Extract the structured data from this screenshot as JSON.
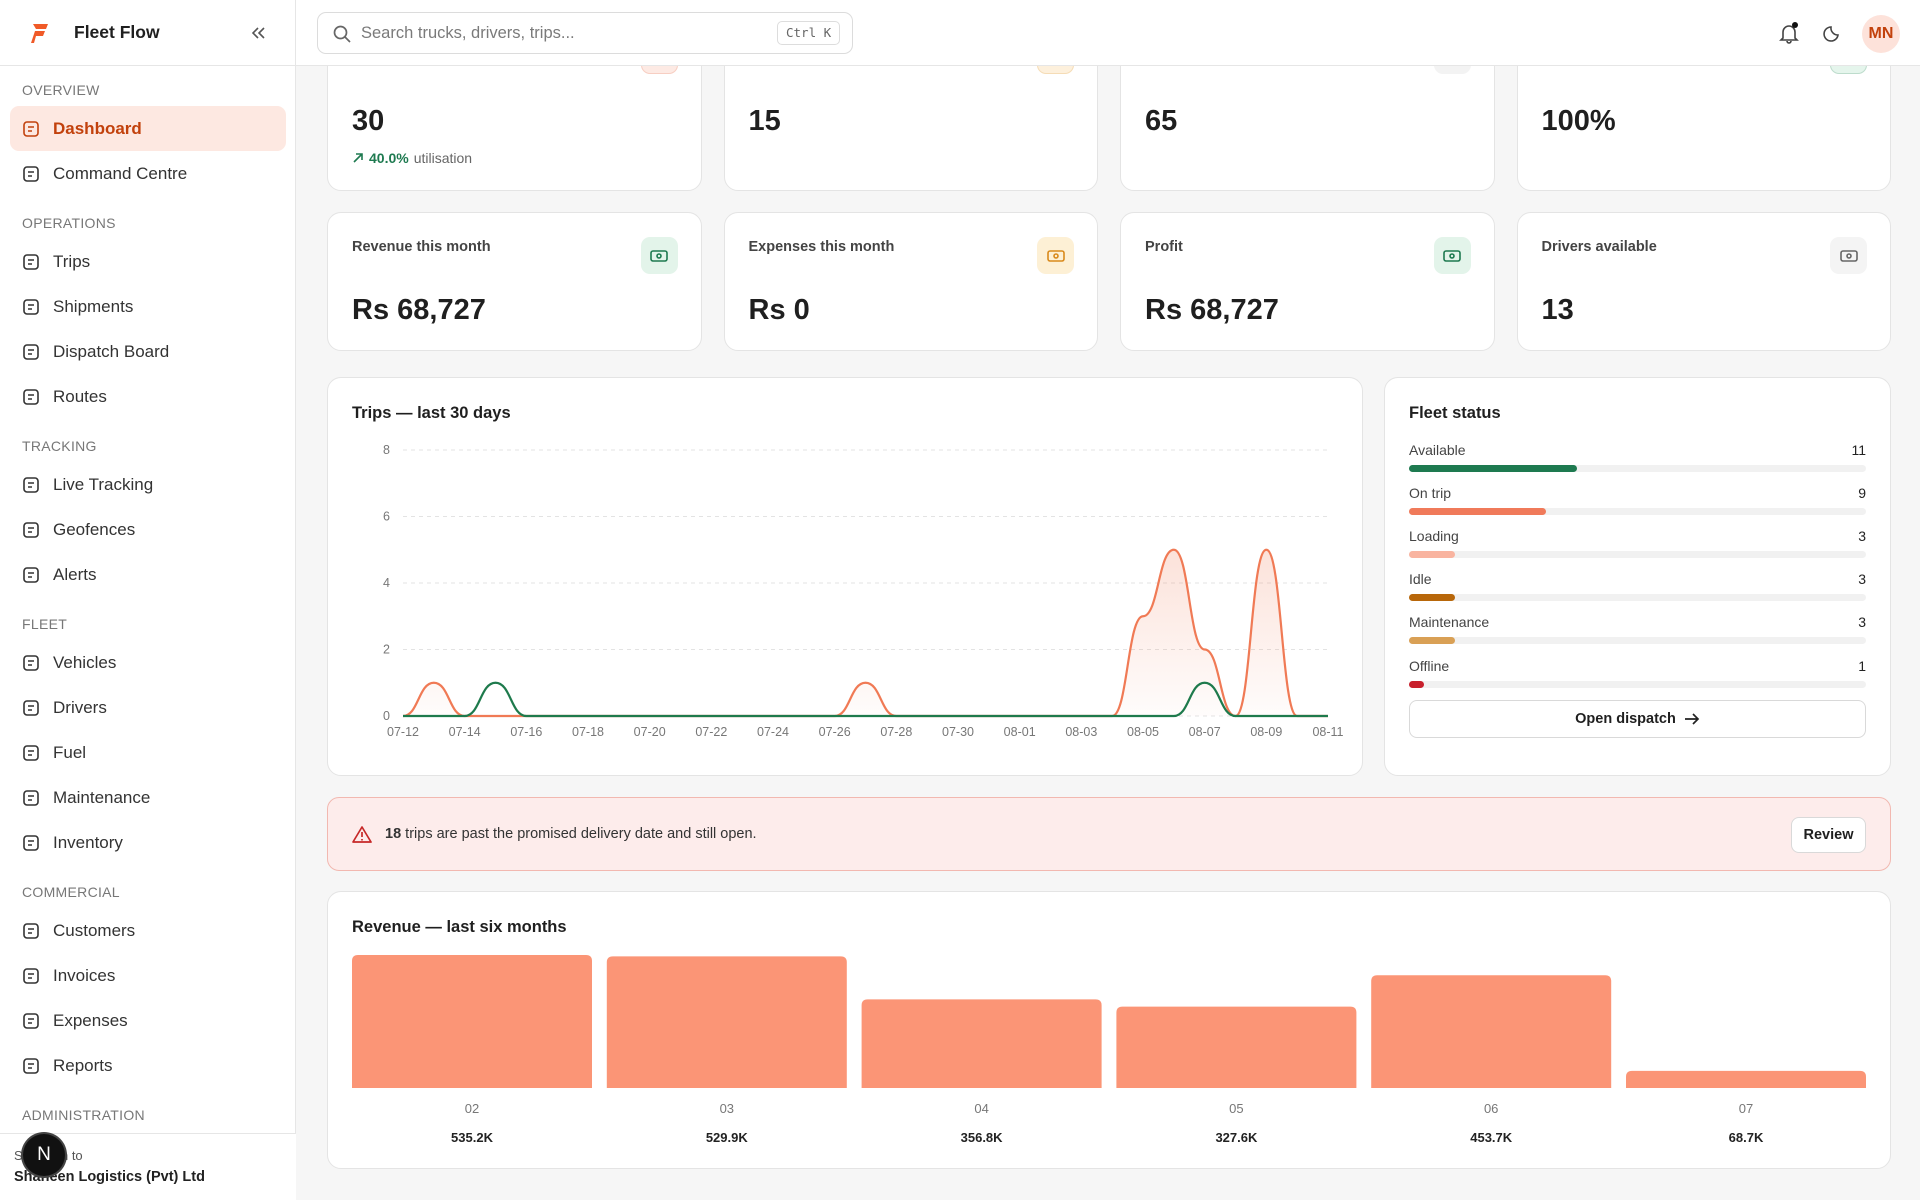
{
  "sidebar": {
    "brand": "Fleet Flow",
    "sections": [
      {
        "title": "OVERVIEW",
        "items": [
          "Dashboard",
          "Command Centre"
        ]
      },
      {
        "title": "OPERATIONS",
        "items": [
          "Trips",
          "Shipments",
          "Dispatch Board",
          "Routes"
        ]
      },
      {
        "title": "TRACKING",
        "items": [
          "Live Tracking",
          "Geofences",
          "Alerts"
        ]
      },
      {
        "title": "FLEET",
        "items": [
          "Vehicles",
          "Drivers",
          "Fuel",
          "Maintenance",
          "Inventory"
        ]
      },
      {
        "title": "COMMERCIAL",
        "items": [
          "Customers",
          "Invoices",
          "Expenses",
          "Reports"
        ]
      },
      {
        "title": "ADMINISTRATION",
        "items": []
      }
    ],
    "footer": {
      "caption": "Signed in to",
      "org": "Shaheen Logistics (Pvt) Ltd"
    },
    "badge": "N"
  },
  "topbar": {
    "search_placeholder": "Search trucks, drivers, trips...",
    "shortcut": "Ctrl K",
    "avatar": "MN"
  },
  "kpis_top": [
    {
      "value": 30,
      "delta": "40.0%",
      "note": "utilisation"
    },
    {
      "value": 15
    },
    {
      "value": 65
    },
    {
      "value": "100%"
    }
  ],
  "kpis": [
    {
      "label": "Revenue this month",
      "value": "Rs 68,727"
    },
    {
      "label": "Expenses this month",
      "value": "Rs 0"
    },
    {
      "label": "Profit",
      "value": "Rs 68,727"
    },
    {
      "label": "Drivers available",
      "value": 13
    }
  ],
  "trips_chart": {
    "type": "line",
    "title": "Trips — last 30 days",
    "categories": [
      "07-12",
      null,
      "07-14",
      null,
      "07-16",
      null,
      "07-18",
      null,
      "07-20",
      null,
      "07-22",
      null,
      "07-24",
      null,
      "07-26",
      null,
      "07-28",
      null,
      "07-30",
      null,
      "08-01",
      null,
      "08-03",
      null,
      "08-05",
      null,
      "08-07",
      null,
      "08-09",
      null,
      "08-11"
    ],
    "series": [
      {
        "color": "#f07a55",
        "values": [
          0,
          1,
          0,
          0,
          0,
          0,
          0,
          0,
          0,
          0,
          0,
          0,
          0,
          0,
          0,
          1,
          0,
          0,
          0,
          0,
          0,
          0,
          0,
          0,
          3,
          5,
          2,
          0,
          5,
          0,
          0
        ]
      },
      {
        "color": "#1e7a4c",
        "values": [
          0,
          0,
          0,
          1,
          0,
          0,
          0,
          0,
          0,
          0,
          0,
          0,
          0,
          0,
          0,
          0,
          0,
          0,
          0,
          0,
          0,
          0,
          0,
          0,
          0,
          0,
          1,
          0,
          0,
          0,
          0
        ]
      }
    ],
    "ylim": [
      0,
      8
    ],
    "yticks": [
      0,
      2,
      4,
      6,
      8
    ],
    "grid": true
  },
  "fleet_status": {
    "type": "bar",
    "title": "Fleet status",
    "categories": [
      "Available",
      "On trip",
      "Loading",
      "Idle",
      "Maintenance",
      "Offline"
    ],
    "values": [
      11,
      9,
      3,
      3,
      3,
      1
    ],
    "colors": [
      "#1e7a50",
      "#f07a5a",
      "#f9b4a0",
      "#b8670a",
      "#d9a055",
      "#c8202c"
    ],
    "button": "Open dispatch"
  },
  "alert": {
    "count": 18,
    "message": "trips are past the promised delivery date and still open.",
    "button": "Review"
  },
  "revenue_chart": {
    "type": "bar",
    "title": "Revenue — last six months",
    "categories": [
      "02",
      "03",
      "04",
      "05",
      "06",
      "07"
    ],
    "values": [
      535200,
      529900,
      356800,
      327600,
      453700,
      68700
    ],
    "value_labels": [
      "535.2K",
      "529.9K",
      "356.8K",
      "327.6K",
      "453.7K",
      "68.7K"
    ],
    "color": "#fb9576"
  }
}
